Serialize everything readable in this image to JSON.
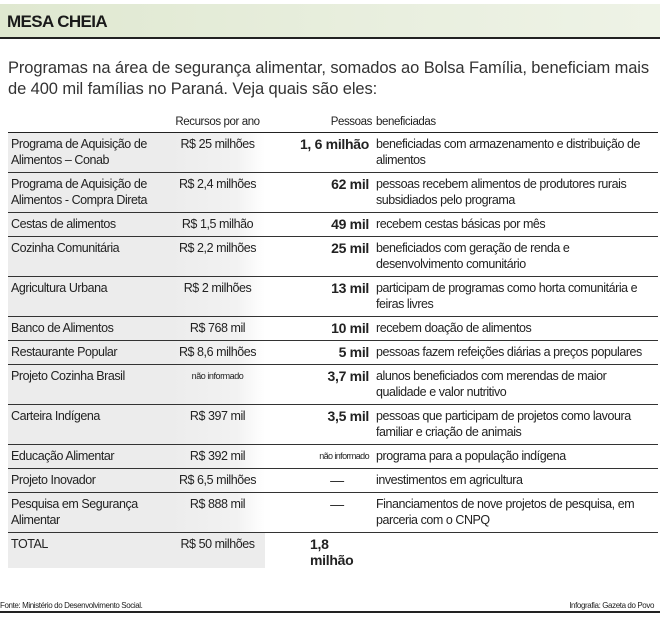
{
  "title": "MESA CHEIA",
  "intro": "Programas na área de segurança alimentar, somados ao Bolsa Família, beneficiam mais de 400 mil famílias no Paraná. Veja quais são eles:",
  "headers": {
    "recursos": "Recursos por ano",
    "pessoas": "Pessoas",
    "beneficiadas": "beneficiadas"
  },
  "rows": [
    {
      "program": "Programa de Aquisição de Alimentos – Conab",
      "resources": "R$ 25 milhões",
      "people": "1, 6 milhão",
      "description": "beneficiadas com armazenamento e distribuição de alimentos"
    },
    {
      "program": "Programa de Aquisição de Alimentos  - Compra Direta",
      "resources": "R$ 2,4 milhões",
      "people": "62 mil",
      "description": "pessoas recebem alimentos de produtores rurais subsidiados pelo programa"
    },
    {
      "program": "Cestas de alimentos",
      "resources": "R$ 1,5 milhão",
      "people": "49 mil",
      "description": "recebem cestas básicas por mês"
    },
    {
      "program": "Cozinha Comunitária",
      "resources": "R$ 2,2 milhões",
      "people": "25 mil",
      "description": "beneficiados com geração de renda e desenvolvimento comunitário"
    },
    {
      "program": "Agricultura Urbana",
      "resources": "R$ 2 milhões",
      "people": "13 mil",
      "description": "participam de programas como horta comunitária e feiras livres"
    },
    {
      "program": "Banco de Alimentos",
      "resources": "R$ 768 mil",
      "people": "10 mil",
      "description": "recebem doação de alimentos"
    },
    {
      "program": "Restaurante Popular",
      "resources": "R$ 8,6 milhões",
      "people": "5 mil",
      "description": "pessoas fazem refeições diárias a preços populares"
    },
    {
      "program": "Projeto Cozinha Brasil",
      "resources": "não informado",
      "people": "3,7 mil",
      "description": "alunos beneficiados com merendas de maior qualidade e valor nutritivo"
    },
    {
      "program": "Carteira Indígena",
      "resources": "R$ 397 mil",
      "people": "3,5 mil",
      "description": "pessoas que participam de projetos como lavoura familiar e criação de animais"
    },
    {
      "program": "Educação Alimentar",
      "resources": "R$ 392 mil",
      "people": "não informado",
      "description": "programa para a população indígena"
    },
    {
      "program": "Projeto Inovador",
      "resources": "R$ 6,5 milhões",
      "people": "—",
      "description": "investimentos em agricultura"
    },
    {
      "program": "Pesquisa em Segurança Alimentar",
      "resources": "R$ 888 mil",
      "people": "—",
      "description": "Financiamentos de nove projetos de pesquisa, em parceria com o CNPQ"
    }
  ],
  "total": {
    "label": "TOTAL",
    "resources": "R$ 50 milhões",
    "people": "1,8 milhão"
  },
  "source": "Fonte: Ministério do Desenvolvimento Social.",
  "credit": "Infografia: Gazeta do Povo"
}
